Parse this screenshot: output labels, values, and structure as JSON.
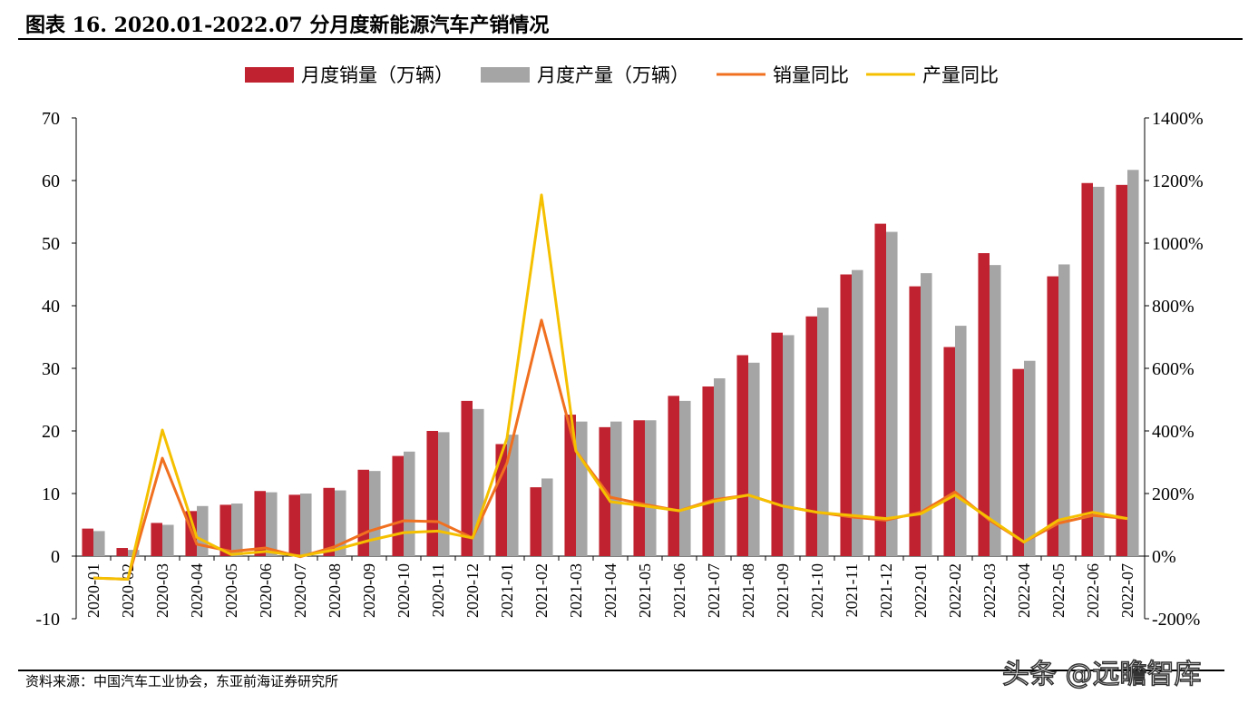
{
  "title": "图表 16. 2020.01-2022.07 分月度新能源汽车产销情况",
  "source": "资料来源：中国汽车工业协会，东亚前海证券研究所",
  "watermark": "头条 @远瞻智库",
  "chart_data": {
    "type": "bar",
    "title": "2020.01-2022.07 分月度新能源汽车产销情况",
    "legend_position": "top",
    "categories": [
      "2020-01",
      "2020-02",
      "2020-03",
      "2020-04",
      "2020-05",
      "2020-06",
      "2020-07",
      "2020-08",
      "2020-09",
      "2020-10",
      "2020-11",
      "2020-12",
      "2021-01",
      "2021-02",
      "2021-03",
      "2021-04",
      "2021-05",
      "2021-06",
      "2021-07",
      "2021-08",
      "2021-09",
      "2021-10",
      "2021-11",
      "2021-12",
      "2022-01",
      "2022-02",
      "2022-03",
      "2022-04",
      "2022-05",
      "2022-06",
      "2022-07"
    ],
    "left_axis": {
      "ylim": [
        -10,
        70
      ],
      "ticks": [
        "-10",
        "0",
        "10",
        "20",
        "30",
        "40",
        "50",
        "60",
        "70"
      ]
    },
    "right_axis": {
      "ylim": [
        -200,
        1400
      ],
      "ticks": [
        "-200%",
        "0%",
        "200%",
        "400%",
        "600%",
        "800%",
        "1000%",
        "1200%",
        "1400%"
      ]
    },
    "series": [
      {
        "name": "月度销量（万辆）",
        "type": "bar",
        "axis": "left",
        "color": "#c0222f",
        "values": [
          4.4,
          1.3,
          5.3,
          7.2,
          8.2,
          10.4,
          9.8,
          10.9,
          13.8,
          16.0,
          20.0,
          24.8,
          17.9,
          11.0,
          22.6,
          20.6,
          21.7,
          25.6,
          27.1,
          32.1,
          35.7,
          38.3,
          45.0,
          53.1,
          43.1,
          33.4,
          48.4,
          29.9,
          44.7,
          59.6,
          59.3
        ]
      },
      {
        "name": "月度产量（万辆）",
        "type": "bar",
        "axis": "left",
        "color": "#a5a5a5",
        "values": [
          4.0,
          1.0,
          5.0,
          8.0,
          8.4,
          10.2,
          10.0,
          10.5,
          13.6,
          16.7,
          19.8,
          23.5,
          19.4,
          12.4,
          21.5,
          21.5,
          21.7,
          24.8,
          28.4,
          30.9,
          35.3,
          39.7,
          45.7,
          51.8,
          45.2,
          36.8,
          46.5,
          31.2,
          46.6,
          59.0,
          61.7
        ]
      },
      {
        "name": "销量同比",
        "type": "line",
        "axis": "right",
        "color": "#f07020",
        "values": [
          -70,
          -74,
          313,
          38,
          15,
          26,
          -2,
          30,
          80,
          113,
          110,
          58,
          298,
          754,
          336,
          188,
          165,
          145,
          180,
          195,
          160,
          140,
          125,
          115,
          140,
          205,
          115,
          45,
          105,
          130,
          120
        ]
      },
      {
        "name": "产量同比",
        "type": "line",
        "axis": "right",
        "color": "#f5c000",
        "values": [
          -70,
          -74,
          403,
          60,
          5,
          15,
          0,
          20,
          50,
          75,
          80,
          58,
          377,
          1154,
          336,
          174,
          160,
          145,
          175,
          195,
          160,
          140,
          130,
          120,
          135,
          195,
          120,
          45,
          115,
          140,
          120
        ]
      }
    ]
  }
}
